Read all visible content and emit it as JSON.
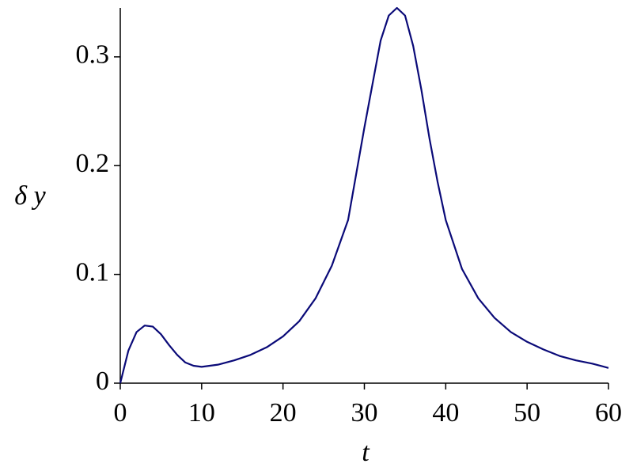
{
  "chart_data": {
    "type": "line",
    "x_label": "t",
    "y_label": "δ y",
    "x": [
      0,
      1,
      2,
      3,
      4,
      5,
      6,
      7,
      8,
      9,
      10,
      12,
      14,
      16,
      18,
      20,
      22,
      24,
      26,
      28,
      30,
      31,
      32,
      33,
      34,
      35,
      36,
      37,
      38,
      39,
      40,
      42,
      44,
      46,
      48,
      50,
      52,
      54,
      56,
      58,
      60
    ],
    "series": [
      {
        "color": "#0a0a78",
        "values": [
          0,
          0.03,
          0.047,
          0.053,
          0.052,
          0.045,
          0.035,
          0.026,
          0.019,
          0.016,
          0.015,
          0.017,
          0.021,
          0.026,
          0.033,
          0.043,
          0.057,
          0.078,
          0.108,
          0.15,
          0.235,
          0.275,
          0.315,
          0.338,
          0.345,
          0.338,
          0.31,
          0.27,
          0.225,
          0.185,
          0.15,
          0.105,
          0.078,
          0.06,
          0.047,
          0.038,
          0.031,
          0.025,
          0.021,
          0.018,
          0.014
        ]
      }
    ],
    "xlim": [
      0,
      60
    ],
    "xticks": [
      0,
      10,
      20,
      30,
      40,
      50,
      60
    ],
    "ylim": [
      0,
      0.345
    ],
    "yticks": [
      0,
      0.1,
      0.2,
      0.3
    ]
  }
}
